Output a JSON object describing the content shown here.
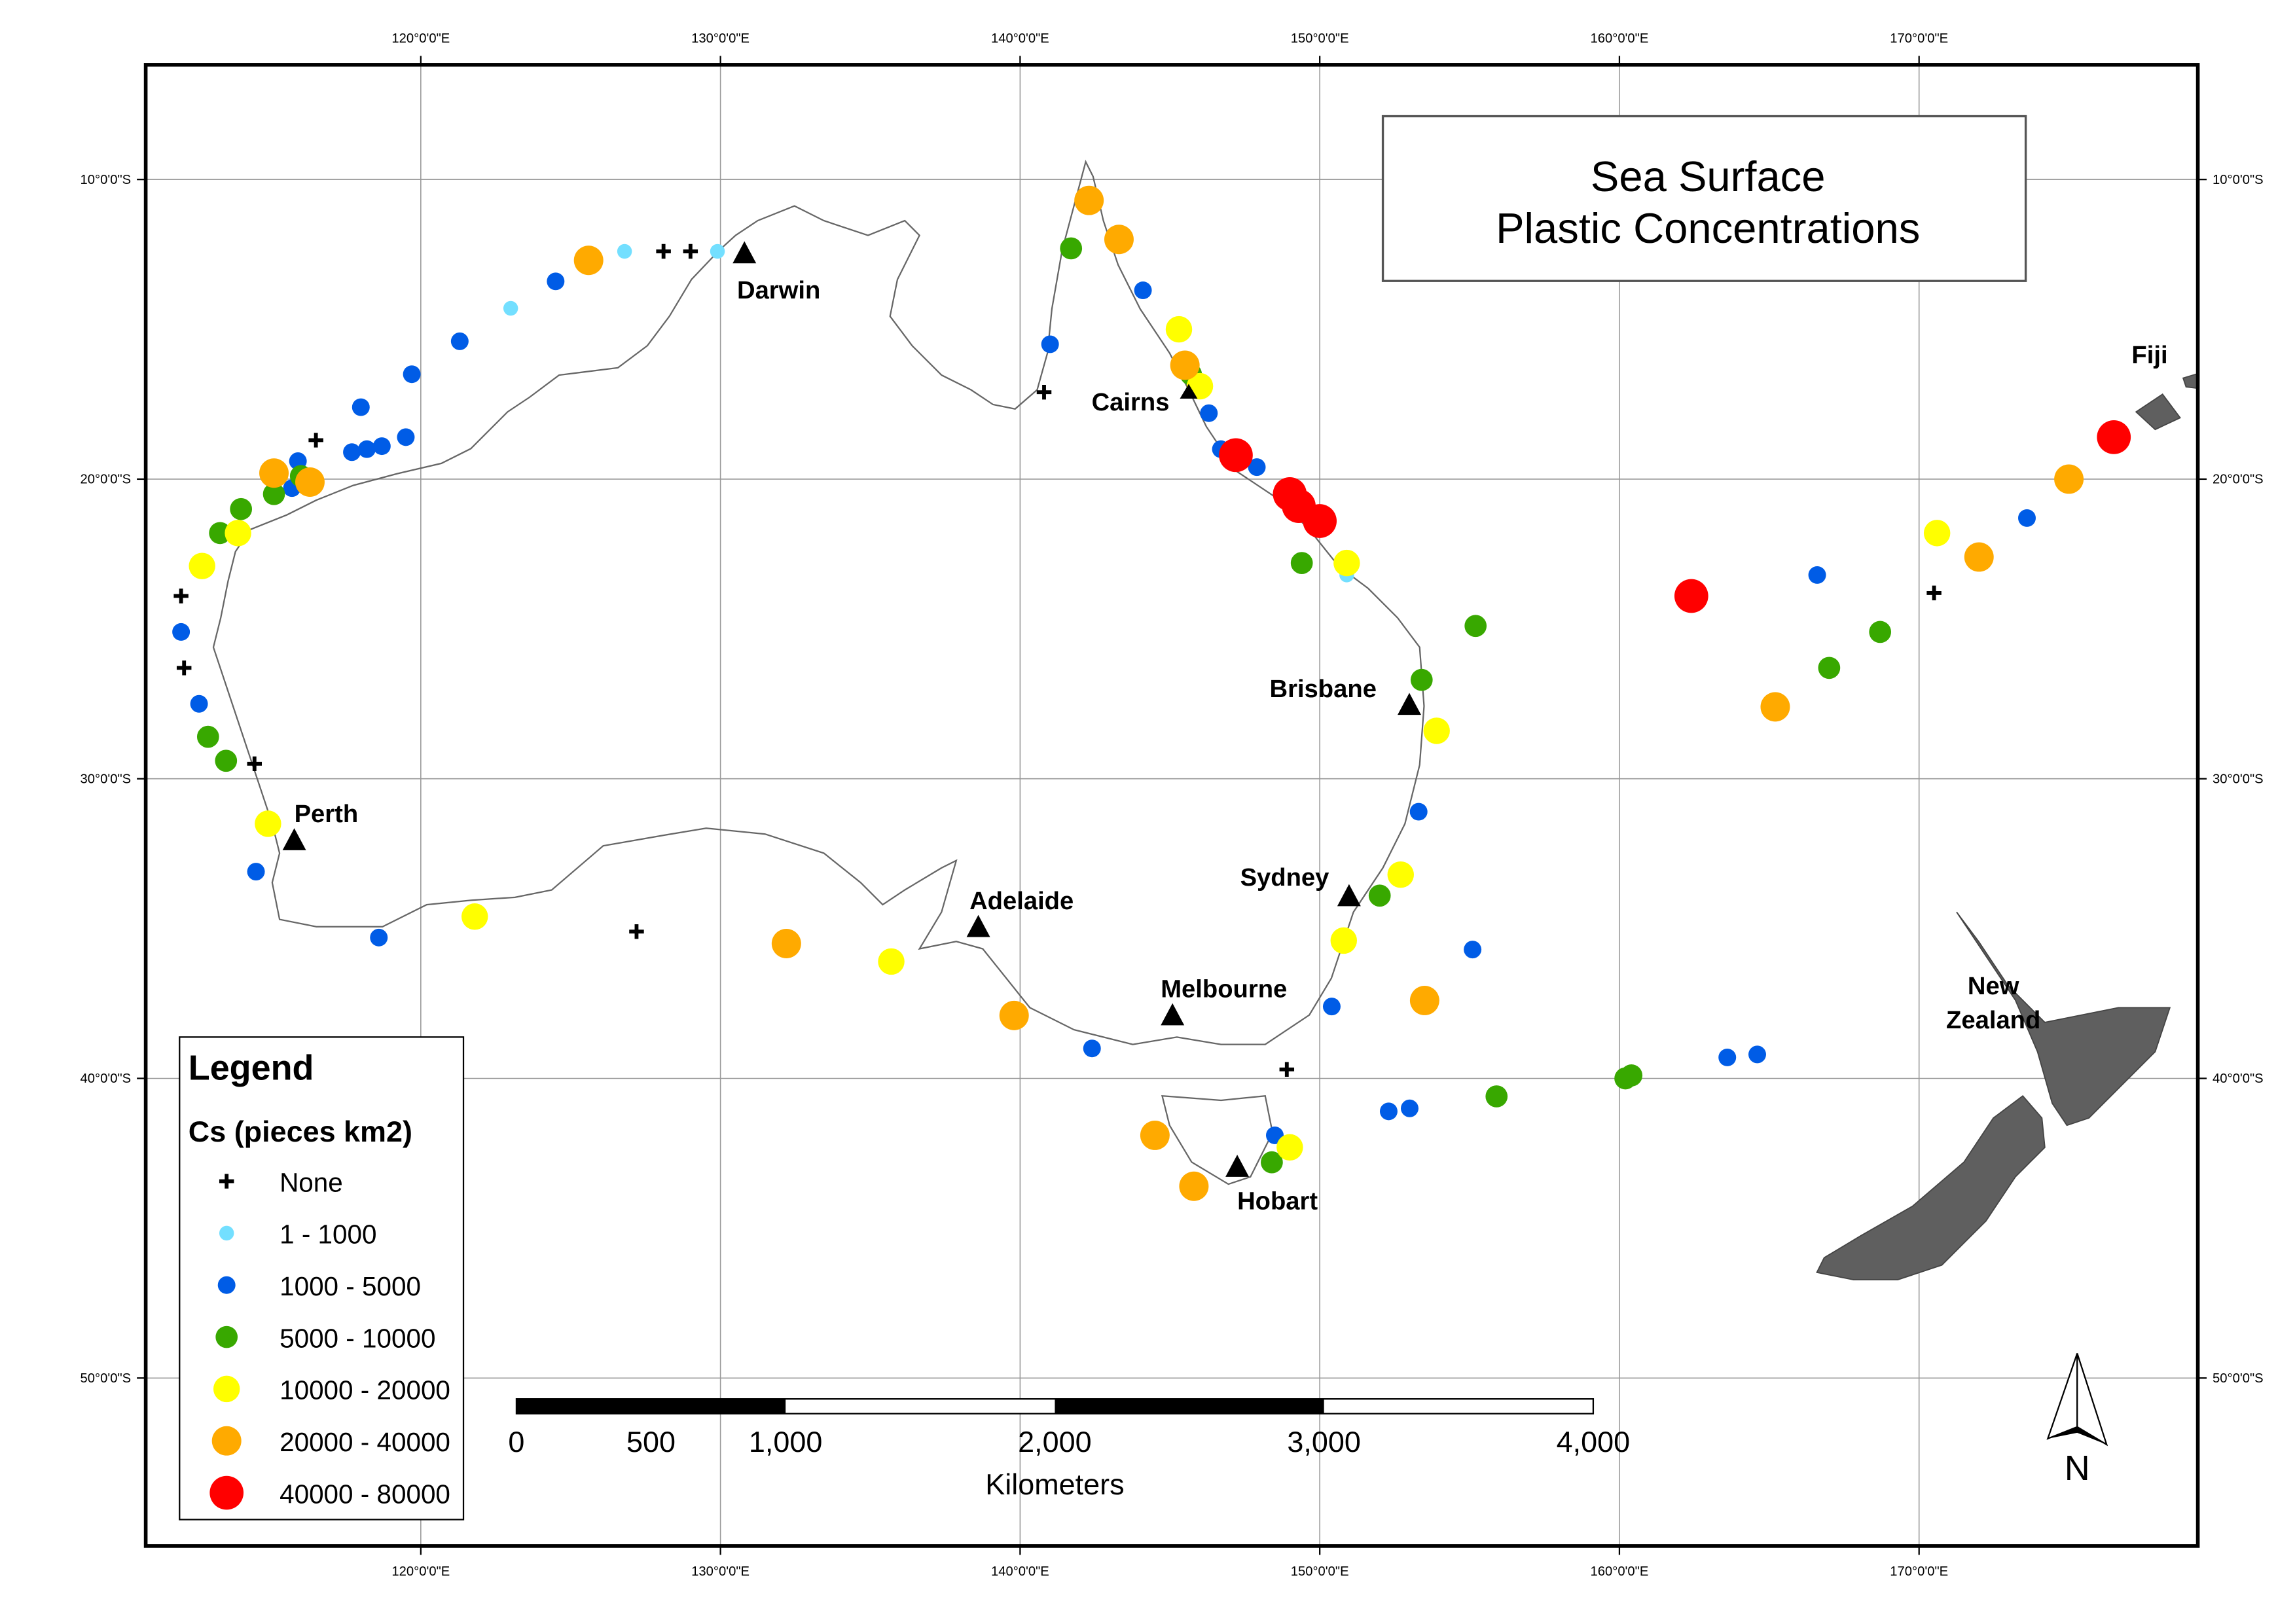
{
  "title": {
    "line1": "Sea Surface",
    "line2": "Plastic Concentrations"
  },
  "graticule": {
    "longitudes": [
      120,
      130,
      140,
      150,
      160,
      170
    ],
    "lon_labels": [
      "120°0'0\"E",
      "130°0'0\"E",
      "140°0'0\"E",
      "150°0'0\"E",
      "160°0'0\"E",
      "170°0'0\"E"
    ],
    "latitudes": [
      -10,
      -20,
      -30,
      -40,
      -50
    ],
    "lat_labels": [
      "10°0'0\"S",
      "20°0'0\"S",
      "30°0'0\"S",
      "40°0'0\"S",
      "50°0'0\"S"
    ]
  },
  "places": {
    "darwin": "Darwin",
    "cairns": "Cairns",
    "brisbane": "Brisbane",
    "sydney": "Sydney",
    "melbourne": "Melbourne",
    "adelaide": "Adelaide",
    "perth": "Perth",
    "hobart": "Hobart",
    "fiji": "Fiji",
    "nz1": "New",
    "nz2": "Zealand"
  },
  "legend": {
    "title": "Legend",
    "subtitle": "Cs (pieces km2)",
    "classes": [
      {
        "key": "none",
        "label": "None",
        "color": "#000000"
      },
      {
        "key": "c1",
        "label": "1 - 1000",
        "color": "#73dfff"
      },
      {
        "key": "c2",
        "label": "1000 - 5000",
        "color": "#005ce6"
      },
      {
        "key": "c3",
        "label": "5000 - 10000",
        "color": "#38a800"
      },
      {
        "key": "c4",
        "label": "10000 - 20000",
        "color": "#ffff00"
      },
      {
        "key": "c5",
        "label": "20000 - 40000",
        "color": "#ffaa00"
      },
      {
        "key": "c6",
        "label": "40000 - 80000",
        "color": "#ff0000"
      }
    ]
  },
  "scalebar": {
    "labels": [
      "0",
      "500",
      "1,000",
      "2,000",
      "3,000",
      "4,000"
    ],
    "values": [
      0,
      500,
      1000,
      2000,
      3000,
      4000
    ],
    "unit": "Kilometers"
  },
  "north_arrow": "N",
  "samples": {
    "none": [
      [
        112.0,
        -23.9
      ],
      [
        112.1,
        -26.3
      ],
      [
        114.45,
        -29.5
      ],
      [
        116.5,
        -18.7
      ],
      [
        128.1,
        -12.4
      ],
      [
        129.0,
        -12.4
      ],
      [
        140.8,
        -17.1
      ],
      [
        127.2,
        -35.1
      ],
      [
        148.9,
        -39.7
      ],
      [
        170.5,
        -23.8
      ]
    ],
    "c1": [
      [
        123.0,
        -14.3
      ],
      [
        126.8,
        -12.4
      ],
      [
        129.9,
        -12.4
      ],
      [
        150.9,
        -23.2
      ]
    ],
    "c2": [
      [
        112.0,
        -25.1
      ],
      [
        112.6,
        -27.5
      ],
      [
        114.5,
        -33.1
      ],
      [
        118.6,
        -35.3
      ],
      [
        115.7,
        -20.3
      ],
      [
        115.9,
        -19.4
      ],
      [
        117.7,
        -19.1
      ],
      [
        118.2,
        -19.0
      ],
      [
        118.7,
        -18.9
      ],
      [
        119.5,
        -18.6
      ],
      [
        118.0,
        -17.6
      ],
      [
        119.7,
        -16.5
      ],
      [
        121.3,
        -15.4
      ],
      [
        124.5,
        -13.4
      ],
      [
        141.0,
        -15.5
      ],
      [
        144.1,
        -13.7
      ],
      [
        146.3,
        -17.8
      ],
      [
        146.7,
        -19.0
      ],
      [
        147.9,
        -19.6
      ],
      [
        153.3,
        -31.1
      ],
      [
        155.1,
        -35.7
      ],
      [
        150.4,
        -37.6
      ],
      [
        142.4,
        -39.0
      ],
      [
        148.5,
        -41.9
      ],
      [
        152.3,
        -41.1
      ],
      [
        153.0,
        -41.0
      ],
      [
        163.6,
        -39.3
      ],
      [
        164.6,
        -39.2
      ],
      [
        166.6,
        -23.2
      ],
      [
        173.6,
        -21.3
      ]
    ],
    "c3": [
      [
        112.9,
        -28.6
      ],
      [
        113.5,
        -29.4
      ],
      [
        113.3,
        -21.8
      ],
      [
        114.0,
        -21.0
      ],
      [
        115.1,
        -20.5
      ],
      [
        116.0,
        -19.9
      ],
      [
        141.7,
        -12.3
      ],
      [
        145.7,
        -16.5
      ],
      [
        149.4,
        -22.8
      ],
      [
        155.2,
        -24.9
      ],
      [
        153.4,
        -26.7
      ],
      [
        152.0,
        -33.9
      ],
      [
        155.9,
        -40.6
      ],
      [
        160.2,
        -40.0
      ],
      [
        160.4,
        -39.9
      ],
      [
        148.4,
        -42.8
      ],
      [
        167.0,
        -26.3
      ],
      [
        168.7,
        -25.1
      ]
    ],
    "c4": [
      [
        112.7,
        -22.9
      ],
      [
        113.9,
        -21.8
      ],
      [
        114.9,
        -31.5
      ],
      [
        121.8,
        -34.6
      ],
      [
        135.7,
        -36.1
      ],
      [
        145.3,
        -15.0
      ],
      [
        146.0,
        -16.9
      ],
      [
        150.9,
        -22.8
      ],
      [
        153.9,
        -28.4
      ],
      [
        152.7,
        -33.2
      ],
      [
        150.8,
        -35.4
      ],
      [
        149.0,
        -42.3
      ],
      [
        170.6,
        -21.8
      ]
    ],
    "c5": [
      [
        115.1,
        -19.8
      ],
      [
        116.3,
        -20.1
      ],
      [
        125.6,
        -12.7
      ],
      [
        142.3,
        -10.7
      ],
      [
        143.3,
        -12.0
      ],
      [
        145.5,
        -16.2
      ],
      [
        132.2,
        -35.5
      ],
      [
        139.8,
        -37.9
      ],
      [
        144.5,
        -41.9
      ],
      [
        145.8,
        -43.6
      ],
      [
        153.5,
        -37.4
      ],
      [
        165.2,
        -27.6
      ],
      [
        172.0,
        -22.6
      ],
      [
        175.0,
        -20.0
      ]
    ],
    "c6": [
      [
        147.2,
        -19.2
      ],
      [
        149.0,
        -20.5
      ],
      [
        149.3,
        -20.9
      ],
      [
        150.0,
        -21.4
      ],
      [
        162.4,
        -23.9
      ],
      [
        176.5,
        -18.6
      ]
    ]
  }
}
